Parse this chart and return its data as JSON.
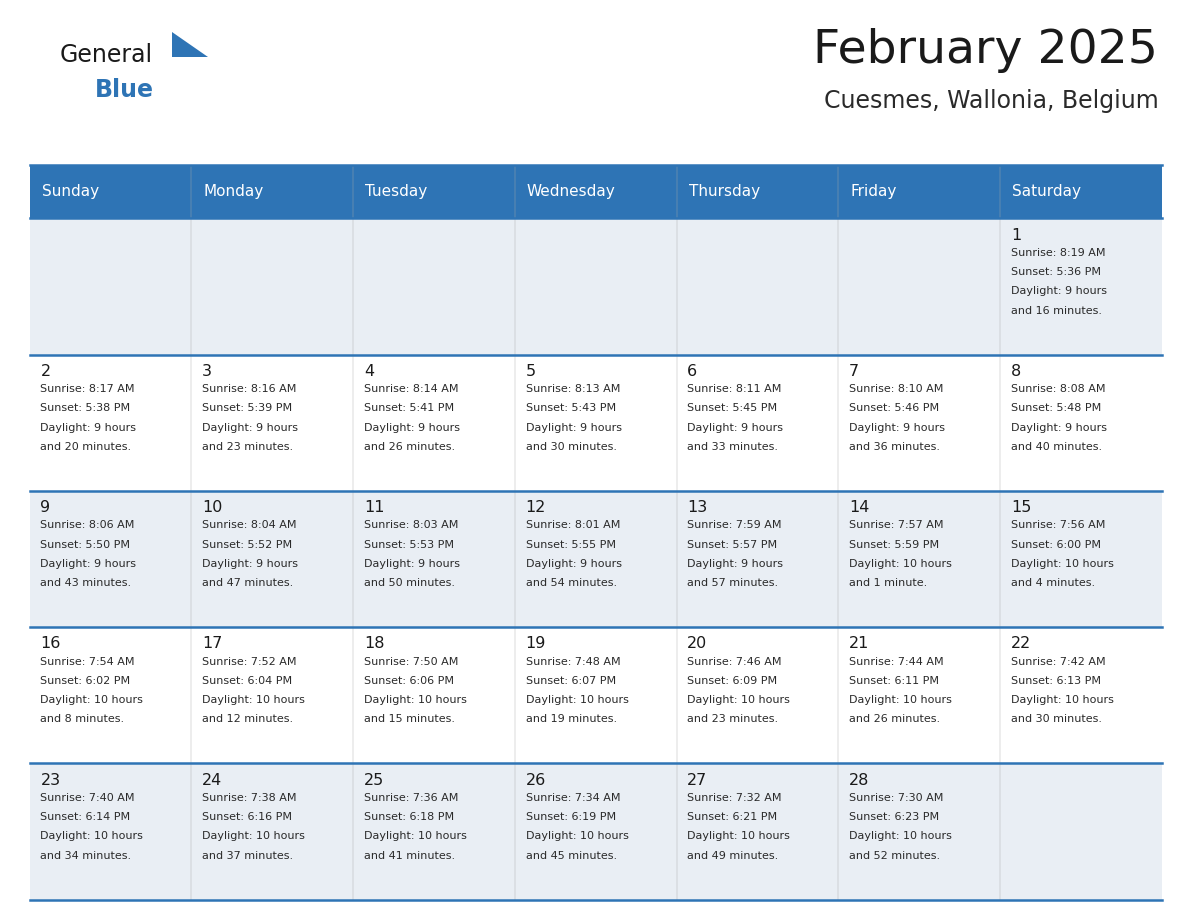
{
  "title": "February 2025",
  "subtitle": "Cuesmes, Wallonia, Belgium",
  "header_bg": "#2E74B5",
  "header_text": "#FFFFFF",
  "row_bg_odd": "#E9EEF4",
  "row_bg_even": "#FFFFFF",
  "divider_color": "#2E74B5",
  "day_names": [
    "Sunday",
    "Monday",
    "Tuesday",
    "Wednesday",
    "Thursday",
    "Friday",
    "Saturday"
  ],
  "title_color": "#1a1a1a",
  "subtitle_color": "#2a2a2a",
  "day_num_color": "#1a1a1a",
  "cell_text_color": "#2a2a2a",
  "calendar": [
    [
      null,
      null,
      null,
      null,
      null,
      null,
      {
        "day": "1",
        "sunrise": "8:19 AM",
        "sunset": "5:36 PM",
        "daylight": "9 hours and 16 minutes."
      }
    ],
    [
      {
        "day": "2",
        "sunrise": "8:17 AM",
        "sunset": "5:38 PM",
        "daylight": "9 hours and 20 minutes."
      },
      {
        "day": "3",
        "sunrise": "8:16 AM",
        "sunset": "5:39 PM",
        "daylight": "9 hours and 23 minutes."
      },
      {
        "day": "4",
        "sunrise": "8:14 AM",
        "sunset": "5:41 PM",
        "daylight": "9 hours and 26 minutes."
      },
      {
        "day": "5",
        "sunrise": "8:13 AM",
        "sunset": "5:43 PM",
        "daylight": "9 hours and 30 minutes."
      },
      {
        "day": "6",
        "sunrise": "8:11 AM",
        "sunset": "5:45 PM",
        "daylight": "9 hours and 33 minutes."
      },
      {
        "day": "7",
        "sunrise": "8:10 AM",
        "sunset": "5:46 PM",
        "daylight": "9 hours and 36 minutes."
      },
      {
        "day": "8",
        "sunrise": "8:08 AM",
        "sunset": "5:48 PM",
        "daylight": "9 hours and 40 minutes."
      }
    ],
    [
      {
        "day": "9",
        "sunrise": "8:06 AM",
        "sunset": "5:50 PM",
        "daylight": "9 hours and 43 minutes."
      },
      {
        "day": "10",
        "sunrise": "8:04 AM",
        "sunset": "5:52 PM",
        "daylight": "9 hours and 47 minutes."
      },
      {
        "day": "11",
        "sunrise": "8:03 AM",
        "sunset": "5:53 PM",
        "daylight": "9 hours and 50 minutes."
      },
      {
        "day": "12",
        "sunrise": "8:01 AM",
        "sunset": "5:55 PM",
        "daylight": "9 hours and 54 minutes."
      },
      {
        "day": "13",
        "sunrise": "7:59 AM",
        "sunset": "5:57 PM",
        "daylight": "9 hours and 57 minutes."
      },
      {
        "day": "14",
        "sunrise": "7:57 AM",
        "sunset": "5:59 PM",
        "daylight": "10 hours and 1 minute."
      },
      {
        "day": "15",
        "sunrise": "7:56 AM",
        "sunset": "6:00 PM",
        "daylight": "10 hours and 4 minutes."
      }
    ],
    [
      {
        "day": "16",
        "sunrise": "7:54 AM",
        "sunset": "6:02 PM",
        "daylight": "10 hours and 8 minutes."
      },
      {
        "day": "17",
        "sunrise": "7:52 AM",
        "sunset": "6:04 PM",
        "daylight": "10 hours and 12 minutes."
      },
      {
        "day": "18",
        "sunrise": "7:50 AM",
        "sunset": "6:06 PM",
        "daylight": "10 hours and 15 minutes."
      },
      {
        "day": "19",
        "sunrise": "7:48 AM",
        "sunset": "6:07 PM",
        "daylight": "10 hours and 19 minutes."
      },
      {
        "day": "20",
        "sunrise": "7:46 AM",
        "sunset": "6:09 PM",
        "daylight": "10 hours and 23 minutes."
      },
      {
        "day": "21",
        "sunrise": "7:44 AM",
        "sunset": "6:11 PM",
        "daylight": "10 hours and 26 minutes."
      },
      {
        "day": "22",
        "sunrise": "7:42 AM",
        "sunset": "6:13 PM",
        "daylight": "10 hours and 30 minutes."
      }
    ],
    [
      {
        "day": "23",
        "sunrise": "7:40 AM",
        "sunset": "6:14 PM",
        "daylight": "10 hours and 34 minutes."
      },
      {
        "day": "24",
        "sunrise": "7:38 AM",
        "sunset": "6:16 PM",
        "daylight": "10 hours and 37 minutes."
      },
      {
        "day": "25",
        "sunrise": "7:36 AM",
        "sunset": "6:18 PM",
        "daylight": "10 hours and 41 minutes."
      },
      {
        "day": "26",
        "sunrise": "7:34 AM",
        "sunset": "6:19 PM",
        "daylight": "10 hours and 45 minutes."
      },
      {
        "day": "27",
        "sunrise": "7:32 AM",
        "sunset": "6:21 PM",
        "daylight": "10 hours and 49 minutes."
      },
      {
        "day": "28",
        "sunrise": "7:30 AM",
        "sunset": "6:23 PM",
        "daylight": "10 hours and 52 minutes."
      },
      null
    ]
  ],
  "logo_general_color": "#1a1a1a",
  "logo_blue_color": "#2E74B5",
  "figsize": [
    11.88,
    9.18
  ],
  "dpi": 100
}
